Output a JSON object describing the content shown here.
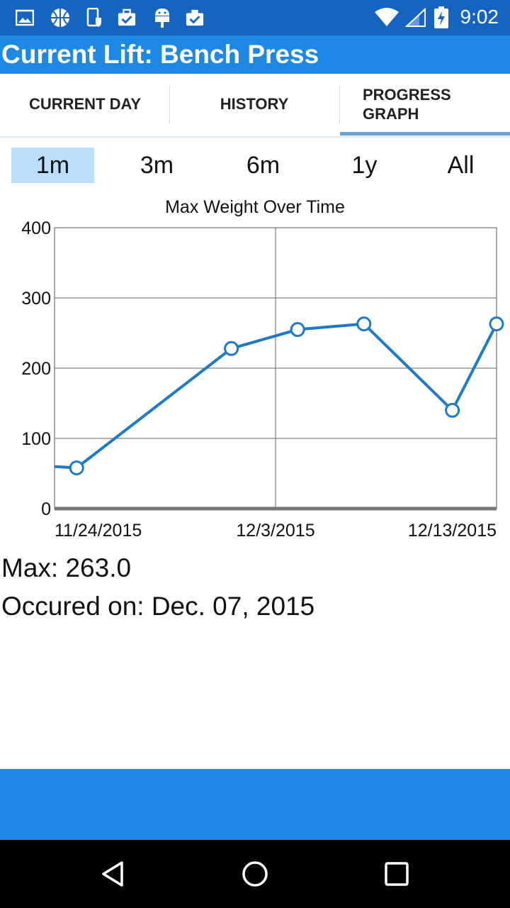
{
  "status_bar": {
    "time": "9:02",
    "icons": [
      "image-icon",
      "basketball-icon",
      "phone-shield-icon",
      "briefcase-check-icon",
      "android-icon",
      "clipboard-check-icon",
      "wifi-icon",
      "signal-icon",
      "battery-charging-icon"
    ]
  },
  "app": {
    "title": "Current Lift: Bench Press",
    "colors": {
      "primary": "#1e88e5",
      "status": "#1565c0",
      "line": "#1e7ac7",
      "selected_range": "#bbdefb"
    }
  },
  "tabs": [
    {
      "label": "CURRENT DAY",
      "selected": false
    },
    {
      "label": "HISTORY",
      "selected": false
    },
    {
      "label": "PROGRESS GRAPH",
      "selected": true
    }
  ],
  "ranges": [
    {
      "label": "1m",
      "selected": true
    },
    {
      "label": "3m",
      "selected": false
    },
    {
      "label": "6m",
      "selected": false
    },
    {
      "label": "1y",
      "selected": false
    },
    {
      "label": "All",
      "selected": false
    }
  ],
  "chart_data": {
    "type": "line",
    "title": "Max Weight Over Time",
    "xlabel": "",
    "ylabel": "",
    "x_tick_labels": [
      "11/24/2015",
      "12/3/2015",
      "12/13/2015"
    ],
    "y_ticks": [
      0,
      100,
      200,
      300,
      400
    ],
    "ylim": [
      0,
      400
    ],
    "xlim": [
      "2015-11-23",
      "2015-12-13"
    ],
    "grid": true,
    "series": [
      {
        "x": [
          "2015-11-23",
          "2015-11-24",
          "2015-12-01",
          "2015-12-04",
          "2015-12-07",
          "2015-12-11",
          "2015-12-13"
        ],
        "y": [
          60,
          58,
          228,
          255,
          263,
          140,
          263
        ],
        "markers": [
          false,
          true,
          true,
          true,
          true,
          true,
          true
        ]
      }
    ]
  },
  "stats": {
    "max": "Max: 263.0",
    "occurred": "Occured on: Dec. 07, 2015"
  },
  "nav": [
    "back-icon",
    "home-icon",
    "recents-icon"
  ]
}
